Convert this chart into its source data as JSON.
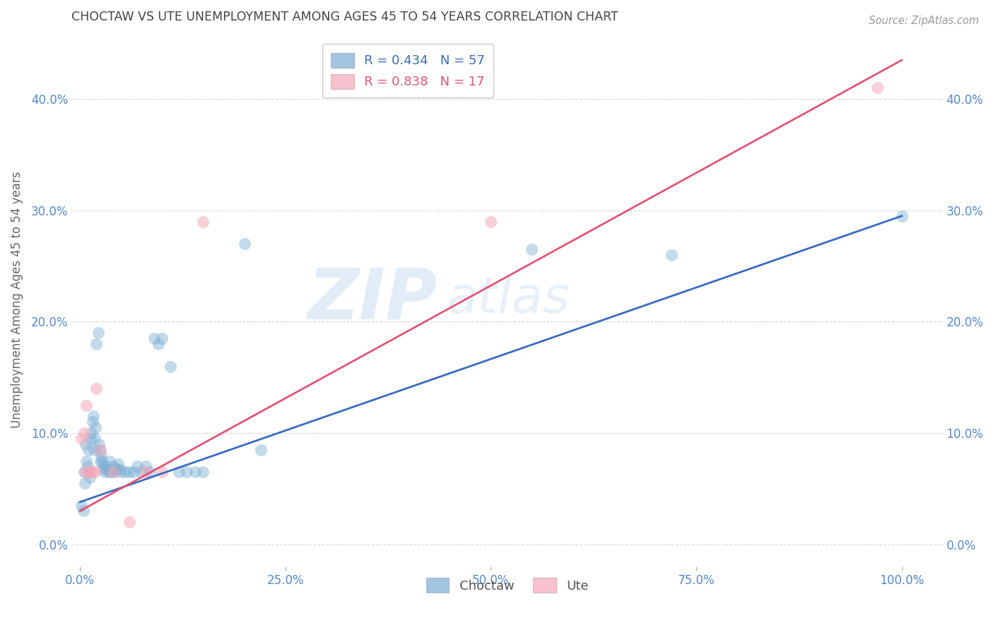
{
  "title": "CHOCTAW VS UTE UNEMPLOYMENT AMONG AGES 45 TO 54 YEARS CORRELATION CHART",
  "source": "Source: ZipAtlas.com",
  "ylabel": "Unemployment Among Ages 45 to 54 years",
  "xlim": [
    -0.01,
    1.05
  ],
  "ylim": [
    -0.02,
    0.46
  ],
  "xticks": [
    0.0,
    0.25,
    0.5,
    0.75,
    1.0
  ],
  "yticks": [
    0.0,
    0.1,
    0.2,
    0.3,
    0.4
  ],
  "xtick_labels": [
    "0.0%",
    "25.0%",
    "50.0%",
    "75.0%",
    "100.0%"
  ],
  "ytick_labels": [
    "0.0%",
    "10.0%",
    "20.0%",
    "30.0%",
    "40.0%"
  ],
  "choctaw_color": "#7bafd4",
  "ute_color": "#f4a8b8",
  "choctaw_line_color": "#3a6bbf",
  "ute_line_color": "#e05575",
  "choctaw_R": 0.434,
  "choctaw_N": 57,
  "ute_R": 0.838,
  "ute_N": 17,
  "watermark_zip": "ZIP",
  "watermark_atlas": "atlas",
  "background_color": "#ffffff",
  "grid_color": "#cccccc",
  "axis_label_color": "#5588cc",
  "title_color": "#444444",
  "choctaw_points": [
    [
      0.002,
      0.035
    ],
    [
      0.004,
      0.03
    ],
    [
      0.005,
      0.065
    ],
    [
      0.006,
      0.055
    ],
    [
      0.007,
      0.09
    ],
    [
      0.008,
      0.075
    ],
    [
      0.009,
      0.07
    ],
    [
      0.01,
      0.085
    ],
    [
      0.011,
      0.065
    ],
    [
      0.012,
      0.06
    ],
    [
      0.013,
      0.095
    ],
    [
      0.014,
      0.1
    ],
    [
      0.015,
      0.11
    ],
    [
      0.016,
      0.115
    ],
    [
      0.017,
      0.085
    ],
    [
      0.018,
      0.095
    ],
    [
      0.019,
      0.105
    ],
    [
      0.02,
      0.18
    ],
    [
      0.022,
      0.19
    ],
    [
      0.023,
      0.09
    ],
    [
      0.024,
      0.085
    ],
    [
      0.025,
      0.075
    ],
    [
      0.026,
      0.08
    ],
    [
      0.027,
      0.075
    ],
    [
      0.028,
      0.07
    ],
    [
      0.029,
      0.068
    ],
    [
      0.03,
      0.065
    ],
    [
      0.032,
      0.07
    ],
    [
      0.035,
      0.065
    ],
    [
      0.036,
      0.075
    ],
    [
      0.038,
      0.065
    ],
    [
      0.04,
      0.07
    ],
    [
      0.042,
      0.065
    ],
    [
      0.044,
      0.068
    ],
    [
      0.046,
      0.072
    ],
    [
      0.048,
      0.068
    ],
    [
      0.05,
      0.065
    ],
    [
      0.055,
      0.065
    ],
    [
      0.06,
      0.065
    ],
    [
      0.065,
      0.065
    ],
    [
      0.07,
      0.07
    ],
    [
      0.075,
      0.065
    ],
    [
      0.08,
      0.07
    ],
    [
      0.085,
      0.065
    ],
    [
      0.09,
      0.185
    ],
    [
      0.095,
      0.18
    ],
    [
      0.1,
      0.185
    ],
    [
      0.11,
      0.16
    ],
    [
      0.12,
      0.065
    ],
    [
      0.13,
      0.065
    ],
    [
      0.14,
      0.065
    ],
    [
      0.15,
      0.065
    ],
    [
      0.2,
      0.27
    ],
    [
      0.22,
      0.085
    ],
    [
      0.55,
      0.265
    ],
    [
      0.72,
      0.26
    ],
    [
      1.0,
      0.295
    ]
  ],
  "ute_points": [
    [
      0.002,
      0.095
    ],
    [
      0.005,
      0.1
    ],
    [
      0.006,
      0.065
    ],
    [
      0.008,
      0.125
    ],
    [
      0.01,
      0.065
    ],
    [
      0.012,
      0.065
    ],
    [
      0.015,
      0.065
    ],
    [
      0.018,
      0.065
    ],
    [
      0.02,
      0.14
    ],
    [
      0.025,
      0.085
    ],
    [
      0.04,
      0.065
    ],
    [
      0.06,
      0.02
    ],
    [
      0.08,
      0.065
    ],
    [
      0.1,
      0.065
    ],
    [
      0.15,
      0.29
    ],
    [
      0.5,
      0.29
    ],
    [
      0.97,
      0.41
    ]
  ],
  "choctaw_trendline_x": [
    0.0,
    1.0
  ],
  "choctaw_trendline_y": [
    0.038,
    0.295
  ],
  "ute_trendline_x": [
    0.0,
    1.0
  ],
  "ute_trendline_y": [
    0.03,
    0.435
  ]
}
